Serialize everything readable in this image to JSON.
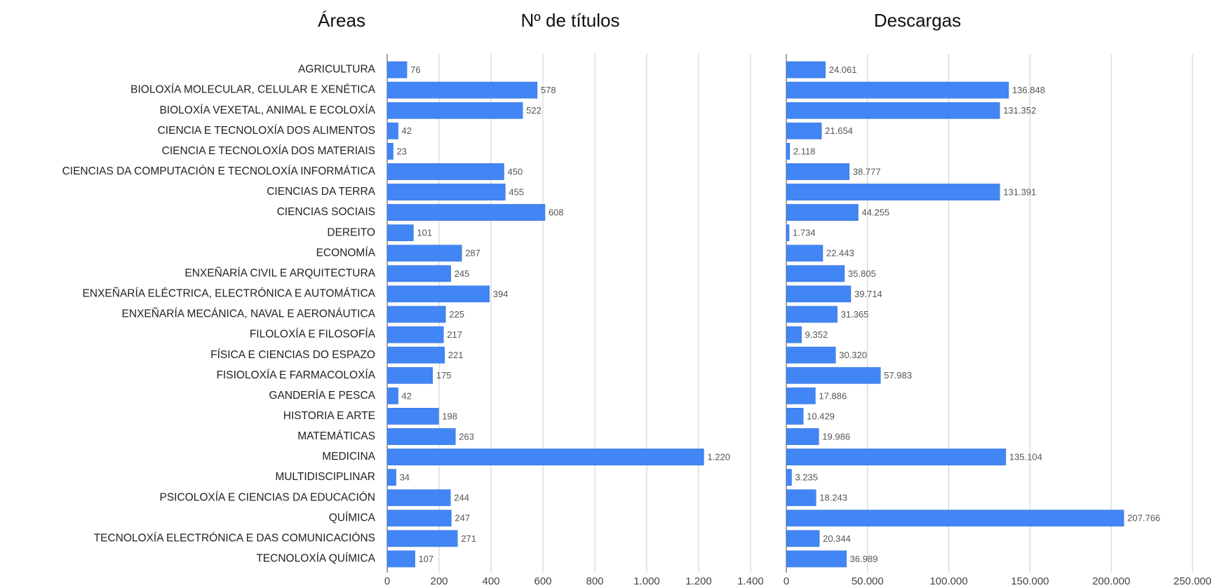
{
  "chart_data": [
    {
      "type": "bar",
      "orientation": "horizontal",
      "category_label": "Áreas",
      "title": "Nº de títulos",
      "color": "#4285f4",
      "grid": true,
      "categories": [
        "AGRICULTURA",
        "BIOLOXÍA MOLECULAR, CELULAR E XENÉTICA",
        "BIOLOXÍA VEXETAL, ANIMAL E ECOLOXÍA",
        "CIENCIA E TECNOLOXÍA DOS ALIMENTOS",
        "CIENCIA E TECNOLOXÍA DOS MATERIAIS",
        "CIENCIAS DA COMPUTACIÓN E TECNOLOXÍA INFORMÁTICA",
        "CIENCIAS DA TERRA",
        "CIENCIAS SOCIAIS",
        "DEREITO",
        "ECONOMÍA",
        "ENXEÑARÍA CIVIL E ARQUITECTURA",
        "ENXEÑARÍA ELÉCTRICA, ELECTRÓNICA E AUTOMÁTICA",
        "ENXEÑARÍA MECÁNICA, NAVAL E AERONÁUTICA",
        "FILOLOXÍA E FILOSOFÍA",
        "FÍSICA E CIENCIAS DO ESPAZO",
        "FISIOLOXÍA E FARMACOLOXÍA",
        "GANDERÍA E PESCA",
        "HISTORIA E ARTE",
        "MATEMÁTICAS",
        "MEDICINA",
        "MULTIDISCIPLINAR",
        "PSICOLOXÍA E CIENCIAS DA EDUCACIÓN",
        "QUÍMICA",
        "TECNOLOXÍA ELECTRÓNICA E DAS COMUNICACIÓNS",
        "TECNOLOXÍA QUÍMICA"
      ],
      "values": [
        76,
        578,
        522,
        42,
        23,
        450,
        455,
        608,
        101,
        287,
        245,
        394,
        225,
        217,
        221,
        175,
        42,
        198,
        263,
        1220,
        34,
        244,
        247,
        271,
        107
      ],
      "value_labels": [
        "76",
        "578",
        "522",
        "42",
        "23",
        "450",
        "455",
        "608",
        "101",
        "287",
        "245",
        "394",
        "225",
        "217",
        "221",
        "175",
        "42",
        "198",
        "263",
        "1.220",
        "34",
        "244",
        "247",
        "271",
        "107"
      ],
      "xlim": [
        0,
        1400
      ],
      "xticks": [
        0,
        200,
        400,
        600,
        800,
        {
          "value": 1000,
          "label": "1.000"
        },
        {
          "value": 1200,
          "label": "1.200"
        },
        {
          "value": 1400,
          "label": "1.400"
        }
      ]
    },
    {
      "type": "bar",
      "orientation": "horizontal",
      "title": "Descargas",
      "color": "#4285f4",
      "grid": true,
      "values": [
        24061,
        136848,
        131352,
        21654,
        2118,
        38777,
        131391,
        44255,
        1734,
        22443,
        35805,
        39714,
        31365,
        9352,
        30320,
        57983,
        17886,
        10429,
        19986,
        135104,
        3235,
        18243,
        207766,
        20344,
        36989
      ],
      "value_labels": [
        "24.061",
        "136.848",
        "131.352",
        "21.654",
        "2.118",
        "38.777",
        "131.391",
        "44.255",
        "1.734",
        "22.443",
        "35.805",
        "39.714",
        "31.365",
        "9.352",
        "30.320",
        "57.983",
        "17.886",
        "10.429",
        "19.986",
        "135.104",
        "3.235",
        "18.243",
        "207.766",
        "20.344",
        "36.989"
      ],
      "xlim": [
        0,
        250000
      ],
      "xticks": [
        0,
        {
          "value": 50000,
          "label": "50.000"
        },
        {
          "value": 100000,
          "label": "100.000"
        },
        {
          "value": 150000,
          "label": "150.000"
        },
        {
          "value": 200000,
          "label": "200.000"
        },
        {
          "value": 250000,
          "label": "250.000"
        }
      ]
    }
  ]
}
